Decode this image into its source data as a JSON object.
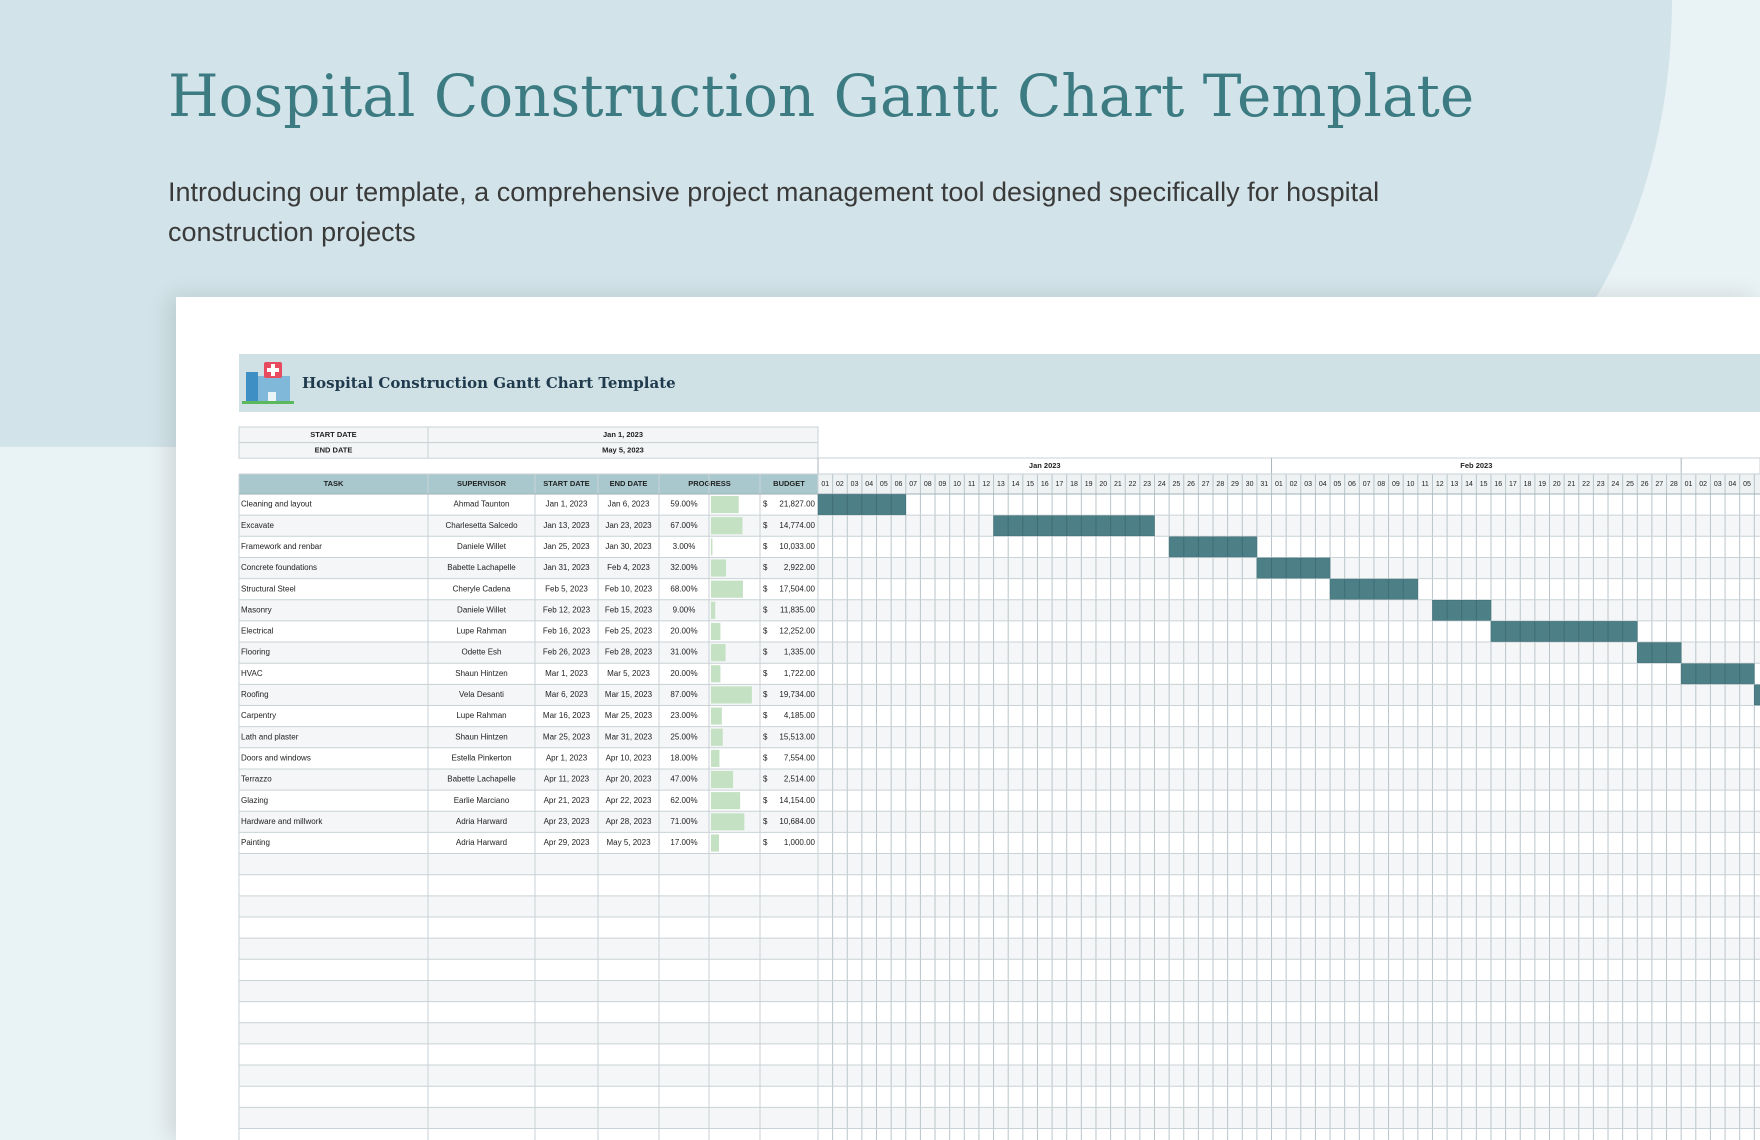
{
  "header": {
    "title": "Hospital Construction Gantt Chart Template",
    "subtitle": "Introducing our template, a comprehensive project management tool designed specifically for hospital construction projects"
  },
  "sheet": {
    "title": "Hospital Construction Gantt Chart Template",
    "start_label": "START DATE",
    "start_date": "Jan 1, 2023",
    "end_label": "END DATE",
    "end_date": "May 5, 2023",
    "columns": [
      "TASK",
      "SUPERVISOR",
      "START DATE",
      "END DATE",
      "PROGRESS",
      "BUDGET"
    ],
    "currency": "$",
    "rows": [
      {
        "task": "Cleaning and layout",
        "supervisor": "Ahmad Taunton",
        "start": "Jan 1, 2023",
        "end": "Jan 6, 2023",
        "progress": {
          "value": 59,
          "label": "59.00%"
        },
        "budget": "21,827.00"
      },
      {
        "task": "Excavate",
        "supervisor": "Charlesetta Salcedo",
        "start": "Jan 13, 2023",
        "end": "Jan 23, 2023",
        "progress": {
          "value": 67,
          "label": "67.00%"
        },
        "budget": "14,774.00"
      },
      {
        "task": "Framework and renbar",
        "supervisor": "Daniele Willet",
        "start": "Jan 25, 2023",
        "end": "Jan 30, 2023",
        "progress": {
          "value": 3,
          "label": "3.00%"
        },
        "budget": "10,033.00"
      },
      {
        "task": "Concrete foundations",
        "supervisor": "Babette Lachapelle",
        "start": "Jan 31, 2023",
        "end": "Feb 4, 2023",
        "progress": {
          "value": 32,
          "label": "32.00%"
        },
        "budget": "2,922.00"
      },
      {
        "task": "Structural Steel",
        "supervisor": "Cheryle Cadena",
        "start": "Feb 5, 2023",
        "end": "Feb 10, 2023",
        "progress": {
          "value": 68,
          "label": "68.00%"
        },
        "budget": "17,504.00"
      },
      {
        "task": "Masonry",
        "supervisor": "Daniele Willet",
        "start": "Feb 12, 2023",
        "end": "Feb 15, 2023",
        "progress": {
          "value": 9,
          "label": "9.00%"
        },
        "budget": "11,835.00"
      },
      {
        "task": "Electrical",
        "supervisor": "Lupe Rahman",
        "start": "Feb 16, 2023",
        "end": "Feb 25, 2023",
        "progress": {
          "value": 20,
          "label": "20.00%"
        },
        "budget": "12,252.00"
      },
      {
        "task": "Flooring",
        "supervisor": "Odette Esh",
        "start": "Feb 26, 2023",
        "end": "Feb 28, 2023",
        "progress": {
          "value": 31,
          "label": "31.00%"
        },
        "budget": "1,335.00"
      },
      {
        "task": "HVAC",
        "supervisor": "Shaun Hintzen",
        "start": "Mar 1, 2023",
        "end": "Mar 5, 2023",
        "progress": {
          "value": 20,
          "label": "20.00%"
        },
        "budget": "1,722.00"
      },
      {
        "task": "Roofing",
        "supervisor": "Vela Desanti",
        "start": "Mar 6, 2023",
        "end": "Mar 15, 2023",
        "progress": {
          "value": 87,
          "label": "87.00%"
        },
        "budget": "19,734.00"
      },
      {
        "task": "Carpentry",
        "supervisor": "Lupe Rahman",
        "start": "Mar 16, 2023",
        "end": "Mar 25, 2023",
        "progress": {
          "value": 23,
          "label": "23.00%"
        },
        "budget": "4,185.00"
      },
      {
        "task": "Lath and plaster",
        "supervisor": "Shaun Hintzen",
        "start": "Mar 25, 2023",
        "end": "Mar 31, 2023",
        "progress": {
          "value": 25,
          "label": "25.00%"
        },
        "budget": "15,513.00"
      },
      {
        "task": "Doors and windows",
        "supervisor": "Estella Pinkerton",
        "start": "Apr 1, 2023",
        "end": "Apr 10, 2023",
        "progress": {
          "value": 18,
          "label": "18.00%"
        },
        "budget": "7,554.00"
      },
      {
        "task": "Terrazzo",
        "supervisor": "Babette Lachapelle",
        "start": "Apr 11, 2023",
        "end": "Apr 20, 2023",
        "progress": {
          "value": 47,
          "label": "47.00%"
        },
        "budget": "2,514.00"
      },
      {
        "task": "Glazing",
        "supervisor": "Earlie Marciano",
        "start": "Apr 21, 2023",
        "end": "Apr 22, 2023",
        "progress": {
          "value": 62,
          "label": "62.00%"
        },
        "budget": "14,154.00"
      },
      {
        "task": "Hardware and millwork",
        "supervisor": "Adria Harward",
        "start": "Apr 23, 2023",
        "end": "Apr 28, 2023",
        "progress": {
          "value": 71,
          "label": "71.00%"
        },
        "budget": "10,684.00"
      },
      {
        "task": "Painting",
        "supervisor": "Adria Harward",
        "start": "Apr 29, 2023",
        "end": "May 5, 2023",
        "progress": {
          "value": 17,
          "label": "17.00%"
        },
        "budget": "1,000.00"
      }
    ],
    "timeline": [
      {
        "month": "Jan 2023",
        "days": [
          "01",
          "02",
          "03",
          "04",
          "05",
          "06",
          "07",
          "08",
          "09",
          "10",
          "11",
          "12",
          "13",
          "14",
          "15",
          "16",
          "17",
          "18",
          "19",
          "20",
          "21",
          "22",
          "23",
          "24",
          "25",
          "26",
          "27",
          "28",
          "29",
          "30",
          "31"
        ]
      },
      {
        "month": "Feb 2023",
        "days": [
          "01",
          "02",
          "03",
          "04",
          "05",
          "06",
          "07",
          "08",
          "09",
          "10",
          "11",
          "12",
          "13",
          "14",
          "15",
          "16",
          "17",
          "18",
          "19",
          "20",
          "21",
          "22",
          "23",
          "24",
          "25",
          "26",
          "27",
          "28"
        ]
      },
      {
        "month": null,
        "days": [
          "01",
          "02",
          "03",
          "04",
          "05"
        ]
      }
    ]
  }
}
